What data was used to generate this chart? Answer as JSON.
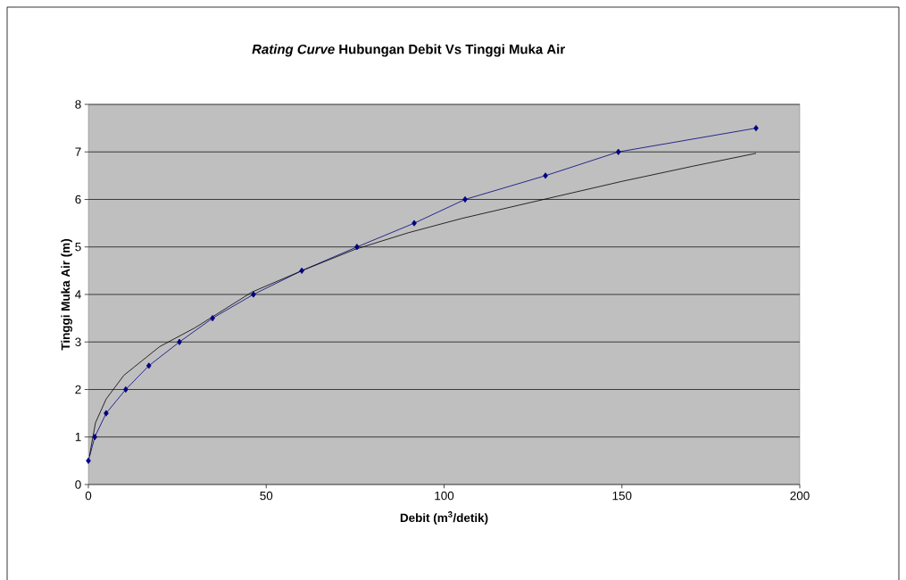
{
  "chart_data": {
    "type": "line",
    "title": "*Rating Curve* Hubungan Debit Vs Tinggi Muka Air",
    "xlabel": "Debit (m$^{3}$/detik)",
    "ylabel": "Tinggi Muka Air (m)",
    "xlim": [
      0,
      200
    ],
    "ylim": [
      0,
      8
    ],
    "xticks": [
      0,
      50,
      100,
      150,
      200
    ],
    "yticks": [
      0,
      1,
      2,
      3,
      4,
      5,
      6,
      7,
      8
    ],
    "grid": "y",
    "series": [
      {
        "color": "#000080",
        "marker": "diamond",
        "x": [
          0,
          1.8,
          5,
          10.5,
          17,
          25.6,
          34.9,
          46.4,
          60,
          75.5,
          91.6,
          105.9,
          128.5,
          149,
          187.7
        ],
        "values": [
          0.5,
          1,
          1.5,
          2,
          2.5,
          3,
          3.5,
          4,
          4.5,
          5,
          5.5,
          6,
          6.5,
          7,
          7.5
        ]
      },
      {
        "color": "#000000",
        "marker": "none",
        "x": [
          0.3,
          2,
          5,
          10,
          20,
          30,
          46,
          60,
          75,
          90,
          105,
          128,
          150,
          170,
          187.7
        ],
        "values": [
          0.6,
          1.3,
          1.8,
          2.3,
          2.9,
          3.3,
          4.05,
          4.5,
          4.95,
          5.3,
          5.6,
          6,
          6.38,
          6.7,
          6.97
        ]
      }
    ]
  }
}
